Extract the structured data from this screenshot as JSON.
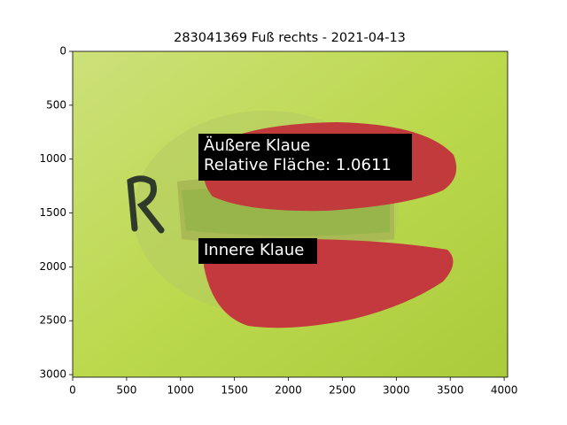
{
  "chart_data": {
    "type": "image",
    "title": "283041369 Fuß rechts - 2021-04-13",
    "xlim": [
      0,
      4032
    ],
    "ylim": [
      3024,
      0
    ],
    "xticks": [
      0,
      500,
      1000,
      1500,
      2000,
      2500,
      3000,
      3500,
      4000
    ],
    "yticks": [
      0,
      500,
      1000,
      1500,
      2000,
      2500,
      3000
    ],
    "annotations": [
      {
        "lines": [
          "Äußere Klaue",
          "Relative Fläche: 1.0611"
        ]
      },
      {
        "lines": [
          "Innere Klaue"
        ]
      }
    ]
  }
}
